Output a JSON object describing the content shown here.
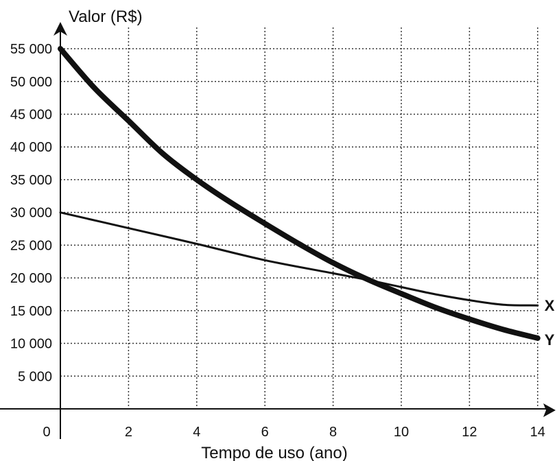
{
  "chart_data": {
    "type": "line",
    "xlabel": "Tempo de uso (ano)",
    "ylabel": "Valor (R$)",
    "origin_label": "0",
    "xlim": [
      0,
      14
    ],
    "ylim": [
      0,
      55000
    ],
    "x_ticks": [
      2,
      4,
      6,
      8,
      10,
      12,
      14
    ],
    "x_tick_labels": [
      "2",
      "4",
      "6",
      "8",
      "10",
      "12",
      "14"
    ],
    "y_ticks": [
      5000,
      10000,
      15000,
      20000,
      25000,
      30000,
      35000,
      40000,
      45000,
      50000,
      55000
    ],
    "y_tick_labels": [
      "5 000",
      "10 000",
      "15 000",
      "20 000",
      "25 000",
      "30 000",
      "35 000",
      "40 000",
      "45 000",
      "50 000",
      "55 000"
    ],
    "grid": true,
    "series": [
      {
        "name": "X",
        "x": [
          0,
          2,
          4,
          6,
          8,
          9,
          10,
          11,
          12,
          13,
          14
        ],
        "values": [
          30000,
          27600,
          25200,
          22700,
          20700,
          19700,
          18600,
          17500,
          16600,
          15900,
          15800
        ]
      },
      {
        "name": "Y",
        "x": [
          0,
          1,
          2,
          3,
          4,
          5,
          6,
          7,
          8,
          9,
          10,
          11,
          12,
          13,
          14
        ],
        "values": [
          55000,
          49000,
          44000,
          39000,
          35000,
          31500,
          28300,
          25200,
          22300,
          19800,
          17600,
          15500,
          13700,
          12100,
          10800
        ]
      }
    ]
  }
}
